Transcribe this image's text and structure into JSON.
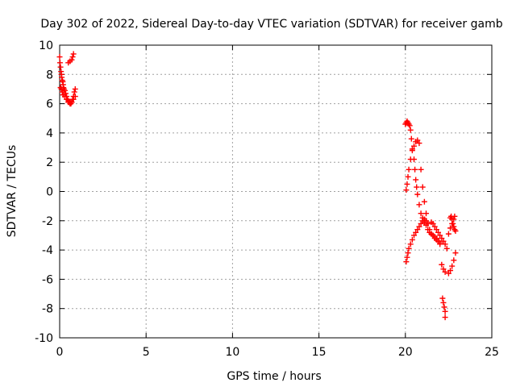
{
  "chart_data": {
    "type": "scatter",
    "title": "Day 302 of 2022, Sidereal Day-to-day VTEC variation (SDTVAR) for receiver gamb",
    "xlabel": "GPS time / hours",
    "ylabel": "SDTVAR / TECUs",
    "xlim": [
      0,
      25
    ],
    "ylim": [
      -10,
      10
    ],
    "x_ticks": [
      0,
      5,
      10,
      15,
      20,
      25
    ],
    "y_ticks": [
      -10,
      -8,
      -6,
      -4,
      -2,
      0,
      2,
      4,
      6,
      8,
      10
    ],
    "grid": true,
    "marker": "plus",
    "color": "#ff0000",
    "series": [
      {
        "name": "SDTVAR",
        "x": [
          0.0,
          0.02,
          0.05,
          0.08,
          0.1,
          0.12,
          0.15,
          0.18,
          0.2,
          0.22,
          0.25,
          0.3,
          0.35,
          0.4,
          0.45,
          0.5,
          0.55,
          0.6,
          0.65,
          0.7,
          0.75,
          0.8,
          0.85,
          0.9,
          0.05,
          0.1,
          0.15,
          0.2,
          0.3,
          0.4,
          0.5,
          0.6,
          0.7,
          0.8,
          0.9,
          0.5,
          0.6,
          0.7,
          0.75,
          0.8,
          20.0,
          20.05,
          20.1,
          20.15,
          20.2,
          20.25,
          20.3,
          20.35,
          20.4,
          20.5,
          20.55,
          20.6,
          20.65,
          20.7,
          20.8,
          20.9,
          21.0,
          21.1,
          21.2,
          21.3,
          21.4,
          21.5,
          21.6,
          21.7,
          21.8,
          21.9,
          22.0,
          20.05,
          20.1,
          20.15,
          20.2,
          20.3,
          20.4,
          20.5,
          20.6,
          20.7,
          20.8,
          20.9,
          21.0,
          21.1,
          21.2,
          21.3,
          21.4,
          21.5,
          21.6,
          21.7,
          21.8,
          21.9,
          22.0,
          20.05,
          20.1,
          20.15,
          20.2,
          20.3,
          20.4,
          20.5,
          20.6,
          20.7,
          20.8,
          20.9,
          21.0,
          21.1,
          21.2,
          21.5,
          21.6,
          21.7,
          21.8,
          21.9,
          22.0,
          22.1,
          22.2,
          22.3,
          22.4,
          22.5,
          22.6,
          22.7,
          22.8,
          22.85,
          22.1,
          22.2,
          22.3,
          22.5,
          22.6,
          22.7,
          22.8,
          22.9,
          22.6,
          22.65,
          22.7,
          22.75,
          22.8,
          22.85,
          22.9,
          22.15,
          22.2,
          22.25,
          22.3,
          22.3
        ],
        "y": [
          9.2,
          8.8,
          8.5,
          8.2,
          8.0,
          7.8,
          7.6,
          7.5,
          7.3,
          7.1,
          7.0,
          6.9,
          6.7,
          6.5,
          6.3,
          6.2,
          6.1,
          6.1,
          6.0,
          6.1,
          6.3,
          6.5,
          6.8,
          7.0,
          7.1,
          7.0,
          6.8,
          6.6,
          6.5,
          6.3,
          6.1,
          6.0,
          6.1,
          6.3,
          6.5,
          8.8,
          8.9,
          9.0,
          9.2,
          9.4,
          4.6,
          4.7,
          4.8,
          4.7,
          4.6,
          4.5,
          4.2,
          3.6,
          2.9,
          2.2,
          1.5,
          0.8,
          0.3,
          -0.2,
          -0.9,
          -1.5,
          -1.8,
          -2.1,
          -2.3,
          -2.6,
          -2.8,
          -2.9,
          -3.0,
          -3.1,
          -3.2,
          -3.4,
          -3.6,
          0.1,
          0.5,
          1.0,
          1.5,
          2.2,
          2.8,
          3.1,
          3.4,
          3.5,
          3.3,
          1.5,
          0.3,
          -0.7,
          -1.5,
          -2.2,
          -2.6,
          -2.9,
          -3.0,
          -3.2,
          -3.3,
          -3.4,
          -3.5,
          -4.8,
          -4.5,
          -4.2,
          -3.9,
          -3.6,
          -3.3,
          -3.0,
          -2.8,
          -2.6,
          -2.4,
          -2.2,
          -2.0,
          -1.9,
          -2.0,
          -2.1,
          -2.2,
          -2.4,
          -2.6,
          -2.8,
          -3.0,
          -3.2,
          -3.4,
          -3.6,
          -3.9,
          -2.9,
          -2.5,
          -2.2,
          -1.9,
          -1.7,
          -5.0,
          -5.3,
          -5.5,
          -5.6,
          -5.4,
          -5.1,
          -4.7,
          -4.2,
          -1.8,
          -1.7,
          -1.9,
          -2.2,
          -2.4,
          -2.6,
          -2.7,
          -7.3,
          -7.6,
          -7.9,
          -8.2,
          -8.6
        ]
      }
    ]
  }
}
